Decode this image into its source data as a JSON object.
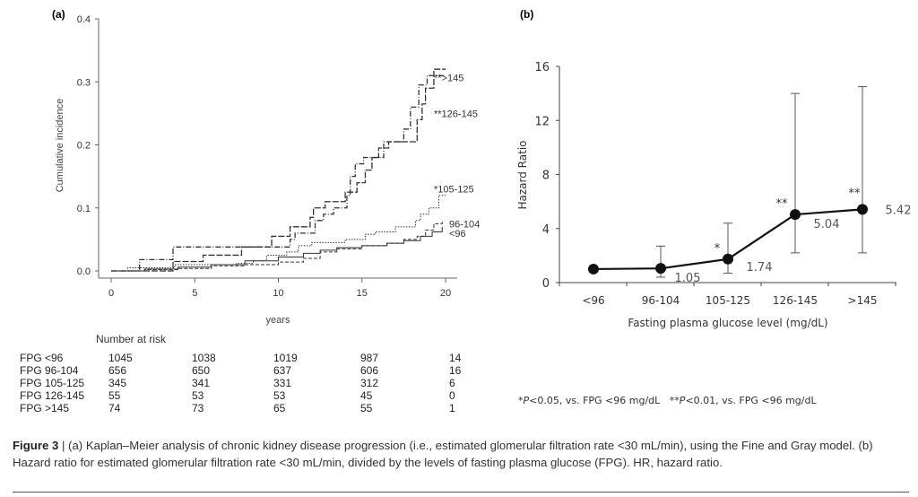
{
  "chart_data": [
    {
      "panel_label": "(a)",
      "type": "line",
      "step": true,
      "xlabel": "years",
      "ylabel": "Cumulative incidence",
      "xlim": [
        0,
        20
      ],
      "ylim": [
        0,
        0.4
      ],
      "xticks": [
        "0",
        "5",
        "10",
        "15",
        "20"
      ],
      "yticks": [
        "0.0",
        "0.1",
        "0.2",
        "0.3",
        "0.4"
      ],
      "grid": false,
      "series": [
        {
          "name": "**>145",
          "style": "dash-dot",
          "points": [
            [
              0,
              0
            ],
            [
              1.7,
              0.018
            ],
            [
              3.7,
              0.038
            ],
            [
              10.5,
              0.038
            ],
            [
              10.7,
              0.05
            ],
            [
              11.0,
              0.06
            ],
            [
              12.2,
              0.08
            ],
            [
              12.7,
              0.09
            ],
            [
              13.3,
              0.1
            ],
            [
              14.1,
              0.12
            ],
            [
              14.3,
              0.15
            ],
            [
              14.6,
              0.17
            ],
            [
              15.1,
              0.18
            ],
            [
              16.3,
              0.205
            ],
            [
              17.0,
              0.205
            ],
            [
              17.5,
              0.225
            ],
            [
              17.9,
              0.26
            ],
            [
              18.4,
              0.295
            ],
            [
              18.9,
              0.31
            ],
            [
              20,
              0.31
            ]
          ]
        },
        {
          "name": "**126-145",
          "style": "long-dash",
          "points": [
            [
              0,
              0
            ],
            [
              3.7,
              0.015
            ],
            [
              5.5,
              0.025
            ],
            [
              7.8,
              0.038
            ],
            [
              9.6,
              0.055
            ],
            [
              10.7,
              0.07
            ],
            [
              11.9,
              0.085
            ],
            [
              12.1,
              0.1
            ],
            [
              12.8,
              0.11
            ],
            [
              14.0,
              0.125
            ],
            [
              14.7,
              0.14
            ],
            [
              15.2,
              0.16
            ],
            [
              15.6,
              0.18
            ],
            [
              16.0,
              0.195
            ],
            [
              16.6,
              0.205
            ],
            [
              18.1,
              0.205
            ],
            [
              18.3,
              0.24
            ],
            [
              18.6,
              0.265
            ],
            [
              18.8,
              0.29
            ],
            [
              19.3,
              0.32
            ],
            [
              20,
              0.32
            ]
          ]
        },
        {
          "name": "*105-125",
          "style": "dotted",
          "points": [
            [
              0,
              0
            ],
            [
              1.0,
              0.005
            ],
            [
              3.8,
              0.01
            ],
            [
              7.5,
              0.012
            ],
            [
              8.5,
              0.016
            ],
            [
              9.3,
              0.025
            ],
            [
              10.5,
              0.03
            ],
            [
              11.2,
              0.04
            ],
            [
              12.0,
              0.045
            ],
            [
              14.0,
              0.05
            ],
            [
              15.2,
              0.058
            ],
            [
              15.8,
              0.062
            ],
            [
              17.0,
              0.07
            ],
            [
              18.2,
              0.08
            ],
            [
              18.5,
              0.09
            ],
            [
              19.0,
              0.1
            ],
            [
              19.6,
              0.12
            ],
            [
              20,
              0.12
            ]
          ]
        },
        {
          "name": "96-104",
          "style": "dashed",
          "points": [
            [
              0,
              0
            ],
            [
              2,
              0.002
            ],
            [
              4,
              0.004
            ],
            [
              6,
              0.008
            ],
            [
              8,
              0.01
            ],
            [
              10,
              0.014
            ],
            [
              11.5,
              0.02
            ],
            [
              12.5,
              0.03
            ],
            [
              13.5,
              0.035
            ],
            [
              15,
              0.04
            ],
            [
              16.5,
              0.044
            ],
            [
              17.5,
              0.05
            ],
            [
              18.3,
              0.055
            ],
            [
              18.8,
              0.065
            ],
            [
              19.3,
              0.075
            ],
            [
              19.8,
              0.078
            ]
          ]
        },
        {
          "name": "<96",
          "style": "solid",
          "points": [
            [
              0,
              0
            ],
            [
              2,
              0.003
            ],
            [
              4,
              0.006
            ],
            [
              6,
              0.01
            ],
            [
              8,
              0.016
            ],
            [
              10,
              0.022
            ],
            [
              11.5,
              0.028
            ],
            [
              12.5,
              0.033
            ],
            [
              13.5,
              0.037
            ],
            [
              15,
              0.04
            ],
            [
              16.5,
              0.044
            ],
            [
              17.5,
              0.048
            ],
            [
              18.5,
              0.055
            ],
            [
              19.2,
              0.062
            ],
            [
              19.8,
              0.07
            ]
          ]
        }
      ],
      "number_at_risk": {
        "title": "Number at risk",
        "rows": [
          {
            "label": "FPG <96",
            "values": [
              "1045",
              "1038",
              "1019",
              "987",
              "14"
            ]
          },
          {
            "label": "FPG 96-104",
            "values": [
              "656",
              "650",
              "637",
              "606",
              "16"
            ]
          },
          {
            "label": "FPG 105-125",
            "values": [
              "345",
              "341",
              "331",
              "312",
              "6"
            ]
          },
          {
            "label": "FPG 126-145",
            "values": [
              "55",
              "53",
              "53",
              "45",
              "0"
            ]
          },
          {
            "label": "FPG  >145",
            "values": [
              "74",
              "73",
              "65",
              "55",
              "1"
            ]
          }
        ]
      }
    },
    {
      "panel_label": "(b)",
      "type": "line",
      "xlabel": "Fasting plasma glucose level (mg/dL)",
      "ylabel": "Hazard Ratio",
      "ylim": [
        0,
        16
      ],
      "yticks": [
        "0",
        "4",
        "8",
        "12",
        "16"
      ],
      "categories": [
        "<96",
        "96-104",
        "105-125",
        "126-145",
        ">145"
      ],
      "values": [
        1,
        1.05,
        1.74,
        5.04,
        5.42
      ],
      "value_labels": [
        "",
        "1.05",
        "1.74",
        "5.04",
        "5.42"
      ],
      "ci_lower": [
        null,
        0.4,
        0.7,
        2.2,
        2.2
      ],
      "ci_upper": [
        null,
        2.7,
        4.4,
        14.0,
        14.5
      ],
      "significance": [
        "",
        "",
        "*",
        "**",
        "**"
      ],
      "grid": false
    }
  ],
  "footnote": {
    "a": "*",
    "b": "P",
    "c": "<0.05, vs. FPG <96 mg/dL",
    "d": "**",
    "e": "P",
    "f": "<0.01, vs. FPG <96 mg/dL"
  },
  "caption": {
    "label": "Figure 3",
    "text": " | (a) Kaplan–Meier analysis of chronic kidney disease progression (i.e., estimated glomerular filtration rate <30 mL/min), using the Fine and Gray model. (b) Hazard ratio for estimated glomerular filtration rate <30 mL/min, divided by the levels of fasting plasma glucose (FPG). HR, hazard ratio."
  },
  "colors": {
    "ink": "#222222",
    "text": "#333333"
  }
}
